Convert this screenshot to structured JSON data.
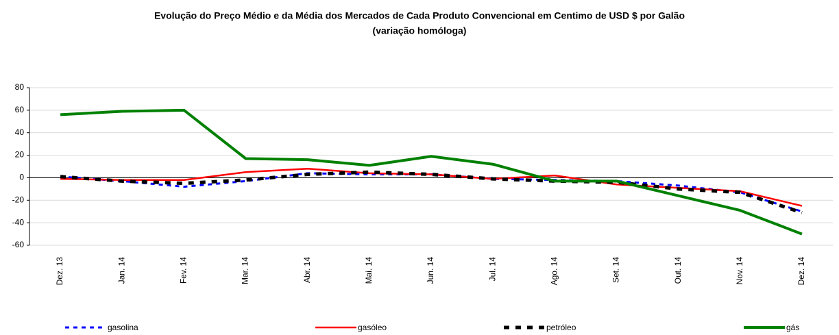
{
  "chart_data": {
    "type": "line",
    "title": "Evolução do Preço Médio e da Média dos Mercados de Cada Produto Convencional em Centimo de USD $ por Galão",
    "subtitle": "(variação homóloga)",
    "categories": [
      "Dez. 13",
      "Jan. 14",
      "Fev. 14",
      "Mar. 14",
      "Abr. 14",
      "Mai. 14",
      "Jun. 14",
      "Jul. 14",
      "Ago. 14",
      "Set. 14",
      "Out. 14",
      "Nov. 14",
      "Dez. 14"
    ],
    "series": [
      {
        "name": "gasolina",
        "color": "#0000ff",
        "values": [
          1,
          -3,
          -8,
          -3,
          4,
          3,
          3,
          -1,
          -2,
          -3,
          -7,
          -13,
          -30
        ]
      },
      {
        "name": "gasóleo",
        "color": "#ff0000",
        "values": [
          -1,
          -2,
          -2,
          5,
          8,
          4,
          3,
          -1,
          2,
          -6,
          -9,
          -12,
          -25
        ]
      },
      {
        "name": "petróleo",
        "color": "#000000",
        "values": [
          1,
          -3,
          -5,
          -2,
          3,
          5,
          3,
          -1,
          -3,
          -4,
          -10,
          -13,
          -31
        ]
      },
      {
        "name": "gás",
        "color": "#008000",
        "values": [
          56,
          59,
          60,
          17,
          16,
          11,
          19,
          12,
          -3,
          -3,
          -16,
          -29,
          -50
        ]
      }
    ],
    "ylim": [
      -60,
      80
    ],
    "yticks": [
      -60,
      -40,
      -20,
      0,
      20,
      40,
      60,
      80
    ],
    "grid": true,
    "legend": "bottom"
  }
}
